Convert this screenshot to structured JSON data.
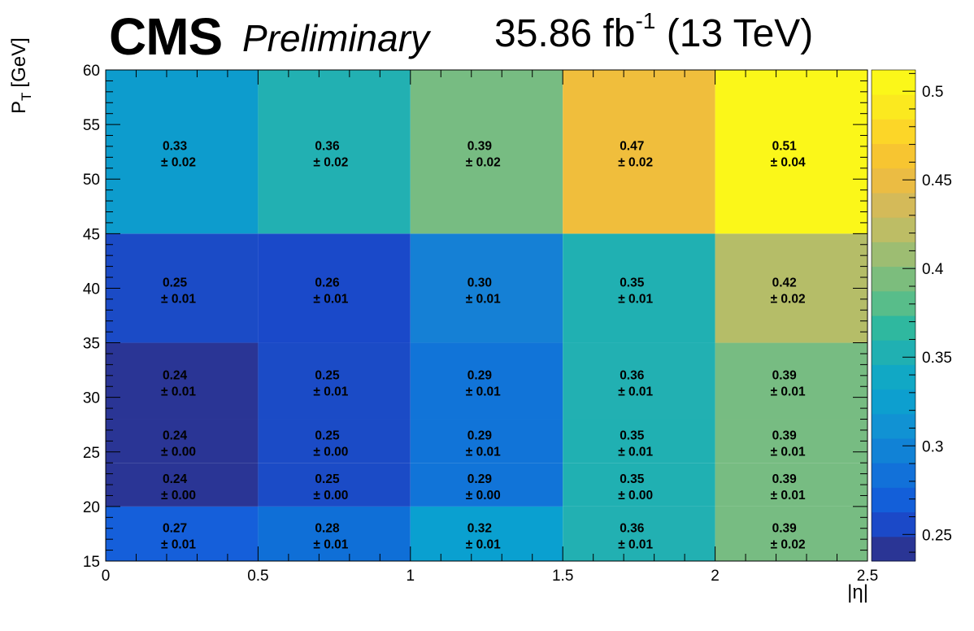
{
  "header": {
    "experiment": "CMS",
    "status": "Preliminary",
    "luminosity": "35.86 fb",
    "lumi_exponent": "-1",
    "energy": "(13 TeV)"
  },
  "chart_data": {
    "type": "heatmap",
    "xlabel": "|η|",
    "ylabel": "P",
    "ylabel_sub": "T",
    "ylabel_unit": "[GeV]",
    "x_edges": [
      0,
      0.5,
      1,
      1.5,
      2,
      2.5
    ],
    "xlim": [
      0,
      2.5
    ],
    "ylim": [
      15,
      60
    ],
    "x_ticks": [
      "0",
      "0.5",
      "1",
      "1.5",
      "2",
      "2.5"
    ],
    "y_ticks": [
      "15",
      "20",
      "25",
      "30",
      "35",
      "40",
      "45",
      "50",
      "55",
      "60"
    ],
    "colorbar_range": [
      0.235,
      0.512
    ],
    "colorbar_ticks": [
      "0.25",
      "0.3",
      "0.35",
      "0.4",
      "0.45",
      "0.5"
    ],
    "columns": [
      {
        "eta": [
          0,
          0.5
        ],
        "bins": [
          {
            "pt": [
              15,
              20
            ],
            "value": 0.27,
            "error": 0.01
          },
          {
            "pt": [
              20,
              24
            ],
            "value": 0.24,
            "error": 0.0
          },
          {
            "pt": [
              24,
              28
            ],
            "value": 0.24,
            "error": 0.0
          },
          {
            "pt": [
              28,
              35
            ],
            "value": 0.24,
            "error": 0.01
          },
          {
            "pt": [
              35,
              45
            ],
            "value": 0.25,
            "error": 0.01
          },
          {
            "pt": [
              45,
              60
            ],
            "value": 0.33,
            "error": 0.02
          }
        ]
      },
      {
        "eta": [
          0.5,
          1
        ],
        "bins": [
          {
            "pt": [
              15,
              20
            ],
            "value": 0.28,
            "error": 0.01
          },
          {
            "pt": [
              20,
              24
            ],
            "value": 0.25,
            "error": 0.0
          },
          {
            "pt": [
              24,
              28
            ],
            "value": 0.25,
            "error": 0.0
          },
          {
            "pt": [
              28,
              35
            ],
            "value": 0.25,
            "error": 0.01
          },
          {
            "pt": [
              35,
              45
            ],
            "value": 0.26,
            "error": 0.01
          },
          {
            "pt": [
              45,
              60
            ],
            "value": 0.36,
            "error": 0.02
          }
        ]
      },
      {
        "eta": [
          1,
          1.5
        ],
        "bins": [
          {
            "pt": [
              15,
              20
            ],
            "value": 0.32,
            "error": 0.01
          },
          {
            "pt": [
              20,
              24
            ],
            "value": 0.29,
            "error": 0.0
          },
          {
            "pt": [
              24,
              28
            ],
            "value": 0.29,
            "error": 0.01
          },
          {
            "pt": [
              28,
              35
            ],
            "value": 0.29,
            "error": 0.01
          },
          {
            "pt": [
              35,
              45
            ],
            "value": 0.3,
            "error": 0.01
          },
          {
            "pt": [
              45,
              60
            ],
            "value": 0.39,
            "error": 0.02
          }
        ]
      },
      {
        "eta": [
          1.5,
          2
        ],
        "bins": [
          {
            "pt": [
              15,
              20
            ],
            "value": 0.36,
            "error": 0.01
          },
          {
            "pt": [
              20,
              24
            ],
            "value": 0.35,
            "error": 0.0
          },
          {
            "pt": [
              24,
              28
            ],
            "value": 0.35,
            "error": 0.01
          },
          {
            "pt": [
              28,
              35
            ],
            "value": 0.36,
            "error": 0.01
          },
          {
            "pt": [
              35,
              45
            ],
            "value": 0.35,
            "error": 0.01
          },
          {
            "pt": [
              45,
              60
            ],
            "value": 0.47,
            "error": 0.02
          }
        ]
      },
      {
        "eta": [
          2,
          2.5
        ],
        "bins": [
          {
            "pt": [
              15,
              20
            ],
            "value": 0.39,
            "error": 0.02
          },
          {
            "pt": [
              20,
              24
            ],
            "value": 0.39,
            "error": 0.01
          },
          {
            "pt": [
              24,
              28
            ],
            "value": 0.39,
            "error": 0.01
          },
          {
            "pt": [
              28,
              35
            ],
            "value": 0.39,
            "error": 0.01
          },
          {
            "pt": [
              35,
              45
            ],
            "value": 0.42,
            "error": 0.02
          },
          {
            "pt": [
              45,
              60
            ],
            "value": 0.51,
            "error": 0.04
          }
        ]
      }
    ],
    "colors": {
      "0.24": "#2a3595",
      "0.25": "#1b4bc6",
      "0.26": "#1a49c9",
      "0.27": "#155fda",
      "0.28": "#0f6fd7",
      "0.29": "#1174d8",
      "0.30": "#1580d5",
      "0.32": "#0aa0d0",
      "0.33": "#0d9ccd",
      "0.35": "#20b0b2",
      "0.36": "#22b0b2",
      "0.39": "#77bc82",
      "0.42": "#b5bd68",
      "0.47": "#f0be3c",
      "0.51": "#fbf719"
    },
    "colorbar_stops": [
      "#2a3595",
      "#1b49c8",
      "#135fd9",
      "#1271d9",
      "#1182d6",
      "#1192d3",
      "#0d9fcf",
      "#11a8c5",
      "#20b0b2",
      "#2fb89f",
      "#58bd8a",
      "#7cbd7d",
      "#9dbd72",
      "#bdbd65",
      "#d4ba59",
      "#ebbc43",
      "#f7c531",
      "#fcd628",
      "#fbe91f",
      "#fbf719"
    ]
  }
}
